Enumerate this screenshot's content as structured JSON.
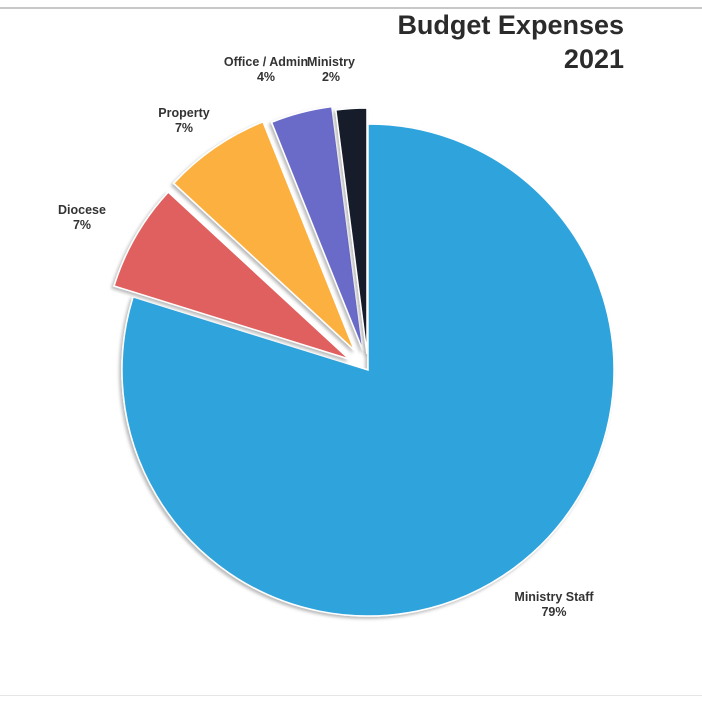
{
  "chart_data": {
    "type": "pie",
    "title_lines": [
      "Budget Expenses",
      "2021"
    ],
    "slices": [
      {
        "label": "Ministry Staff",
        "value": 79,
        "display": "79%",
        "color": "#2fa3dc"
      },
      {
        "label": "Diocese",
        "value": 7,
        "display": "7%",
        "color": "#e0615e"
      },
      {
        "label": "Property",
        "value": 7,
        "display": "7%",
        "color": "#fbb040"
      },
      {
        "label": "Office / Admin",
        "value": 4,
        "display": "4%",
        "color": "#6a6bc9"
      },
      {
        "label": "Ministry",
        "value": 2,
        "display": "2%",
        "color": "#131a2a"
      }
    ],
    "legend": "none",
    "labels": "outside, category and percent"
  }
}
